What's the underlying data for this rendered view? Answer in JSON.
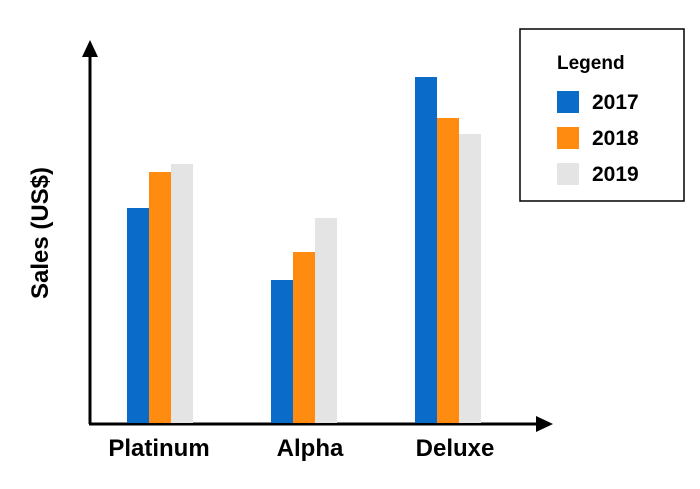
{
  "chart_data": {
    "type": "bar",
    "title": "",
    "xlabel": "",
    "ylabel": "Sales (US$)",
    "categories": [
      "Platinum",
      "Alpha",
      "Deluxe"
    ],
    "series": [
      {
        "name": "2017",
        "color": "#0B6BC8",
        "values": [
          215,
          143,
          346
        ]
      },
      {
        "name": "2018",
        "color": "#FF8B10",
        "values": [
          251,
          171,
          305
        ]
      },
      {
        "name": "2019",
        "color": "#E4E4E4",
        "values": [
          259,
          205,
          289
        ]
      }
    ],
    "ylim": [
      0,
      380
    ],
    "grid": false,
    "y_ticks_shown": false,
    "legend": {
      "title": "Legend",
      "position": "top-right"
    }
  }
}
